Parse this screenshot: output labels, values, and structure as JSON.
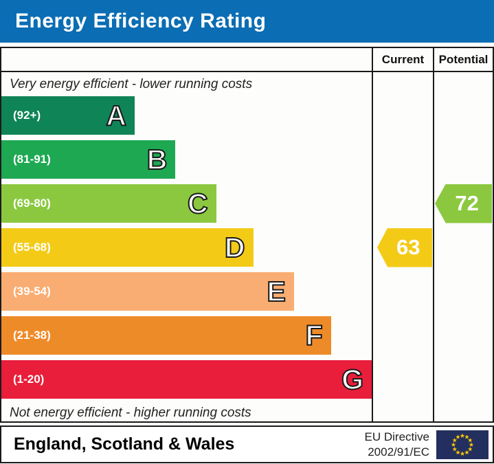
{
  "header": {
    "title": "Energy Efficiency Rating",
    "bg_color": "#0b6db4"
  },
  "table": {
    "columns": {
      "current": "Current",
      "potential": "Potential"
    },
    "top_note": "Very energy efficient - lower running costs",
    "bottom_note": "Not energy efficient - higher running costs",
    "bands": [
      {
        "letter": "A",
        "range": "(92+)",
        "color": "#0E8457",
        "width_pct": 36
      },
      {
        "letter": "B",
        "range": "(81-91)",
        "color": "#1EA852",
        "width_pct": 47
      },
      {
        "letter": "C",
        "range": "(69-80)",
        "color": "#8BC83F",
        "width_pct": 58
      },
      {
        "letter": "D",
        "range": "(55-68)",
        "color": "#F3CB17",
        "width_pct": 68
      },
      {
        "letter": "E",
        "range": "(39-54)",
        "color": "#F9AD72",
        "width_pct": 79
      },
      {
        "letter": "F",
        "range": "(21-38)",
        "color": "#EE8B29",
        "width_pct": 89
      },
      {
        "letter": "G",
        "range": "(1-20)",
        "color": "#E81E3A",
        "width_pct": 100
      }
    ],
    "current": {
      "value": "63",
      "band": "D",
      "color": "#F3CB17"
    },
    "potential": {
      "value": "72",
      "band": "C",
      "color": "#8BC83F"
    }
  },
  "footer": {
    "region": "England, Scotland & Wales",
    "directive_line1": "EU Directive",
    "directive_line2": "2002/91/EC",
    "flag_color": "#232F5E",
    "flag_star_color": "#FFCC00"
  },
  "chart_data": {
    "type": "bar",
    "title": "Energy Efficiency Rating",
    "categories": [
      "A",
      "B",
      "C",
      "D",
      "E",
      "F",
      "G"
    ],
    "band_ranges": [
      "(92+)",
      "(81-91)",
      "(69-80)",
      "(55-68)",
      "(39-54)",
      "(21-38)",
      "(1-20)"
    ],
    "band_colors": [
      "#0E8457",
      "#1EA852",
      "#8BC83F",
      "#F3CB17",
      "#F9AD72",
      "#EE8B29",
      "#E81E3A"
    ],
    "bar_lengths_pct": [
      36,
      47,
      58,
      68,
      79,
      89,
      100
    ],
    "series": [
      {
        "name": "Current",
        "value": 63,
        "band": "D"
      },
      {
        "name": "Potential",
        "value": 72,
        "band": "C"
      }
    ],
    "annotations": [
      "Very energy efficient - lower running costs",
      "Not energy efficient - higher running costs"
    ],
    "legend_position": "none",
    "footer_region": "England, Scotland & Wales",
    "footer_directive": "EU Directive 2002/91/EC"
  }
}
